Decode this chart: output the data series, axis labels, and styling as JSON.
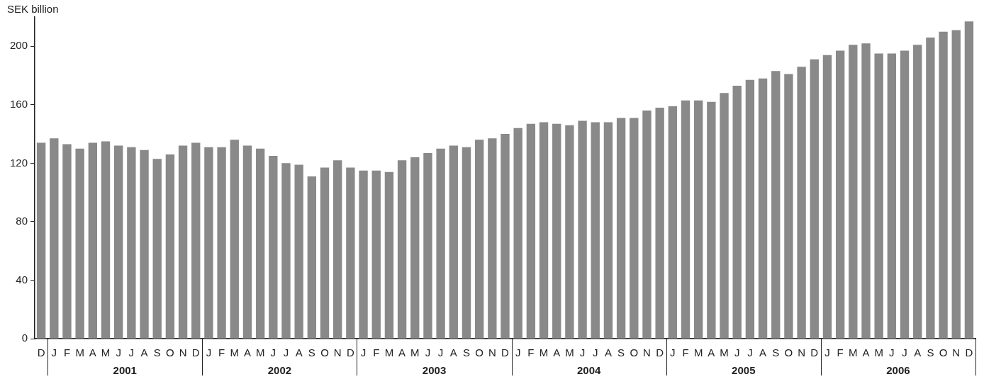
{
  "chart_data": {
    "type": "bar",
    "ylabel": "SEK billion",
    "categories": [
      "D",
      "J",
      "F",
      "M",
      "A",
      "M",
      "J",
      "J",
      "A",
      "S",
      "O",
      "N",
      "D",
      "J",
      "F",
      "M",
      "A",
      "M",
      "J",
      "J",
      "A",
      "S",
      "O",
      "N",
      "D",
      "J",
      "F",
      "M",
      "A",
      "M",
      "J",
      "J",
      "A",
      "S",
      "O",
      "N",
      "D",
      "J",
      "F",
      "M",
      "A",
      "M",
      "J",
      "J",
      "A",
      "S",
      "O",
      "N",
      "D",
      "J",
      "F",
      "M",
      "A",
      "M",
      "J",
      "J",
      "A",
      "S",
      "O",
      "N",
      "D",
      "J",
      "F",
      "M",
      "A",
      "M",
      "J",
      "J",
      "A",
      "S",
      "O",
      "N",
      "D"
    ],
    "values": [
      134,
      137,
      133,
      130,
      134,
      135,
      132,
      131,
      129,
      123,
      126,
      132,
      134,
      131,
      131,
      136,
      132,
      130,
      125,
      120,
      119,
      111,
      117,
      122,
      117,
      115,
      115,
      114,
      122,
      124,
      127,
      130,
      132,
      131,
      136,
      137,
      140,
      144,
      147,
      148,
      147,
      146,
      149,
      148,
      148,
      151,
      151,
      156,
      158,
      159,
      163,
      163,
      162,
      168,
      173,
      177,
      178,
      183,
      181,
      186,
      191,
      194,
      197,
      201,
      202,
      195,
      195,
      197,
      201,
      206,
      210,
      211,
      217
    ],
    "color": "#898989",
    "ylim": [
      0,
      220
    ],
    "yticks": [
      0,
      40,
      80,
      120,
      160,
      200
    ],
    "grid": false,
    "legend": false,
    "annotations": [
      "2001",
      "2002",
      "2003",
      "2004",
      "2005",
      "2006"
    ]
  }
}
